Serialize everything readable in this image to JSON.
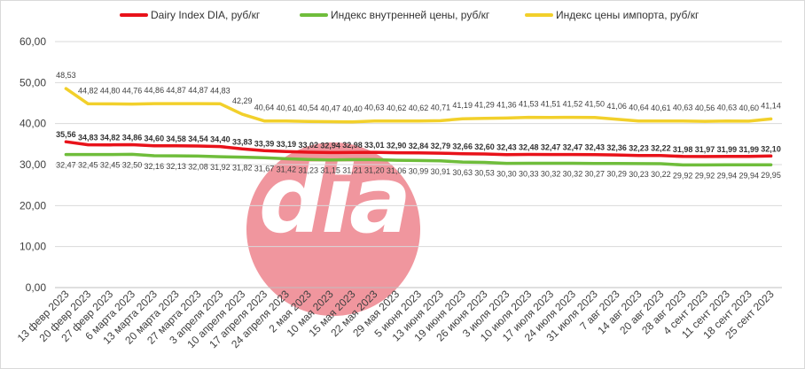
{
  "chart_data": {
    "type": "line",
    "title": "",
    "xlabel": "",
    "ylabel": "",
    "ylim": [
      0,
      60
    ],
    "yticks": [
      "0,00",
      "10,00",
      "20,00",
      "30,00",
      "40,00",
      "50,00",
      "60,00"
    ],
    "grid": true,
    "legend_position": "top",
    "categories": [
      "13 февр 2023",
      "20 февр 2023",
      "27 февр 2023",
      "6 марта 2023",
      "13 марта 2023",
      "20 марта 2023",
      "27 марта 2023",
      "3 апреля 2023",
      "10 апреля 2023",
      "17 апреля 2023",
      "24 апреля 2023",
      "2 мая 2023",
      "10 мая 2023",
      "15 мая 2023",
      "22 мая 2023",
      "29 мая 2023",
      "5 июня 2023",
      "13 июня 2023",
      "19 июня 2023",
      "26 июня 2023",
      "3 июля 2023",
      "10 июля 2023",
      "17 июля 2023",
      "24 июля 2023",
      "31 июля 2023",
      "7 авг 2023",
      "14 авг 2023",
      "20 авг 2023",
      "28 авг 2023",
      "4 сент 2023",
      "11 сент 2023",
      "18 сент 2023",
      "25 сент 2023"
    ],
    "series": [
      {
        "name": "Dairy Index DIA, руб/кг",
        "color": "#e8121a",
        "values": [
          35.56,
          34.83,
          34.82,
          34.86,
          34.6,
          34.58,
          34.54,
          34.4,
          33.83,
          33.39,
          33.19,
          33.02,
          32.94,
          32.98,
          33.01,
          32.9,
          32.84,
          32.79,
          32.66,
          32.6,
          32.43,
          32.48,
          32.47,
          32.47,
          32.43,
          32.36,
          32.23,
          32.22,
          31.98,
          31.97,
          31.99,
          31.99,
          32.1
        ],
        "labels": [
          "35,56",
          "34,83",
          "34,82",
          "34,86",
          "34,60",
          "34,58",
          "34,54",
          "34,40",
          "33,83",
          "33,39",
          "33,19",
          "33,02",
          "32,94",
          "32,98",
          "33,01",
          "32,90",
          "32,84",
          "32,79",
          "32,66",
          "32,60",
          "32,43",
          "32,48",
          "32,47",
          "32,47",
          "32,43",
          "32,36",
          "32,23",
          "32,22",
          "31,98",
          "31,97",
          "31,99",
          "31,99",
          "32,10"
        ]
      },
      {
        "name": "Индекс внутренней цены, руб/кг",
        "color": "#6fbd3b",
        "values": [
          32.47,
          32.45,
          32.45,
          32.5,
          32.16,
          32.13,
          32.08,
          31.92,
          31.82,
          31.67,
          31.42,
          31.23,
          31.15,
          31.21,
          31.2,
          31.06,
          30.99,
          30.91,
          30.63,
          30.53,
          30.3,
          30.33,
          30.32,
          30.32,
          30.27,
          30.29,
          30.23,
          30.22,
          29.92,
          29.92,
          29.94,
          29.94,
          29.95
        ],
        "labels": [
          "32,47",
          "32,45",
          "32,45",
          "32,50",
          "32,16",
          "32,13",
          "32,08",
          "31,92",
          "31,82",
          "31,67",
          "31,42",
          "31,23",
          "31,15",
          "31,21",
          "31,20",
          "31,06",
          "30,99",
          "30,91",
          "30,63",
          "30,53",
          "30,30",
          "30,33",
          "30,32",
          "30,32",
          "30,27",
          "30,29",
          "30,23",
          "30,22",
          "29,92",
          "29,92",
          "29,94",
          "29,94",
          "29,95"
        ]
      },
      {
        "name": "Индекс цены импорта, руб/кг",
        "color": "#f2d02b",
        "values": [
          48.53,
          44.82,
          44.8,
          44.76,
          44.86,
          44.87,
          44.87,
          44.83,
          42.29,
          40.64,
          40.61,
          40.54,
          40.47,
          40.4,
          40.63,
          40.62,
          40.62,
          40.71,
          41.19,
          41.29,
          41.36,
          41.53,
          41.51,
          41.52,
          41.5,
          41.06,
          40.64,
          40.61,
          40.63,
          40.56,
          40.63,
          40.6,
          41.14
        ],
        "labels": [
          "48,53",
          "44,82",
          "44,80",
          "44,76",
          "44,86",
          "44,87",
          "44,87",
          "44,83",
          "42,29",
          "40,64",
          "40,61",
          "40,54",
          "40,47",
          "40,40",
          "40,63",
          "40,62",
          "40,62",
          "40,71",
          "41,19",
          "41,29",
          "41,36",
          "41,53",
          "41,51",
          "41,52",
          "41,50",
          "41,06",
          "40,64",
          "40,61",
          "40,63",
          "40,56",
          "40,63",
          "40,60",
          "41,14"
        ]
      }
    ]
  },
  "watermark": {
    "logo_text": "dia",
    "circle_color": "#f0969e"
  }
}
